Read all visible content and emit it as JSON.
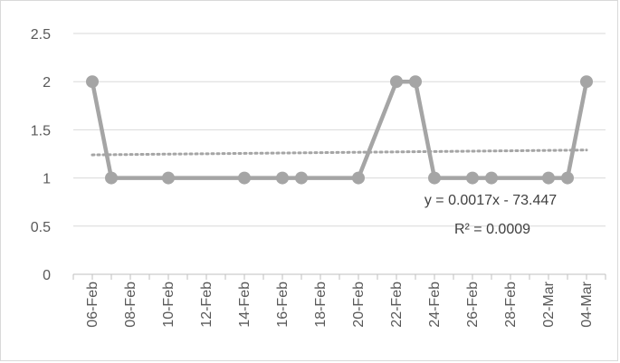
{
  "chart_data": {
    "type": "line",
    "title": "",
    "xlabel": "",
    "ylabel": "",
    "ylim": [
      0,
      2.5
    ],
    "y_ticks": [
      "0",
      "0.5",
      "1",
      "1.5",
      "2",
      "2.5"
    ],
    "x_ticks": [
      "06-Feb",
      "08-Feb",
      "10-Feb",
      "12-Feb",
      "14-Feb",
      "16-Feb",
      "18-Feb",
      "20-Feb",
      "22-Feb",
      "24-Feb",
      "26-Feb",
      "28-Feb",
      "02-Mar",
      "04-Mar"
    ],
    "x_range": [
      "2021-02-05",
      "2021-03-05"
    ],
    "grid": "horizontal",
    "legend": "none",
    "series": [
      {
        "color": "#a5a5a5",
        "marker": "circle",
        "points": [
          {
            "x": "2021-02-06",
            "y": 2
          },
          {
            "x": "2021-02-07",
            "y": 1
          },
          {
            "x": "2021-02-10",
            "y": 1
          },
          {
            "x": "2021-02-14",
            "y": 1
          },
          {
            "x": "2021-02-16",
            "y": 1
          },
          {
            "x": "2021-02-17",
            "y": 1
          },
          {
            "x": "2021-02-20",
            "y": 1
          },
          {
            "x": "2021-02-22",
            "y": 2
          },
          {
            "x": "2021-02-23",
            "y": 2
          },
          {
            "x": "2021-02-24",
            "y": 1
          },
          {
            "x": "2021-02-26",
            "y": 1
          },
          {
            "x": "2021-02-27",
            "y": 1
          },
          {
            "x": "2021-03-02",
            "y": 1
          },
          {
            "x": "2021-03-03",
            "y": 1
          },
          {
            "x": "2021-03-04",
            "y": 2
          }
        ]
      }
    ],
    "trendline": {
      "type": "linear",
      "style": "dotted",
      "color": "#a5a5a5",
      "equation_label": "y = 0.0017x - 73.447",
      "r2_label": "R² = 0.0009",
      "y_start": 1.24,
      "y_end": 1.29
    },
    "colors": {
      "series": "#a5a5a5",
      "gridline": "#d9d9d9",
      "axis": "#bfbfbf",
      "tick_text": "#595959"
    }
  }
}
